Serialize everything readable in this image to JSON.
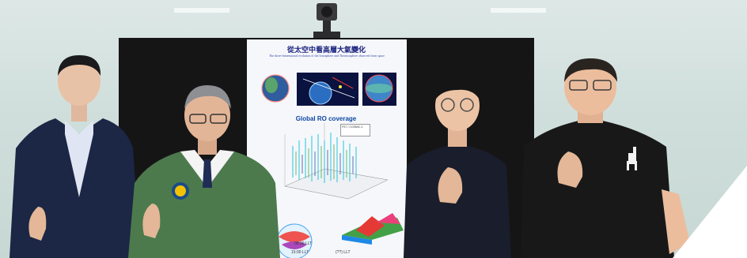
{
  "poster": {
    "title": "從太空中看高層大氣變化",
    "subtitle": "The three-dimensional evolution of the Ionosphere and Thermosphere observed from space",
    "ro_title": "Global RO coverage",
    "legend_text": "FS7 / COSMIC-2",
    "lt_label_1": "09:00 LLT",
    "lt_label_2": "15:00 LLT",
    "lt_label_3": "(??) LLT"
  },
  "colors": {
    "wall": "#d5e3e0",
    "screen": "#151516",
    "poster": "#f6f7fb",
    "jacket_green": "#4c7a4d",
    "suit_navy": "#1c2645",
    "shirt_black": "#181818"
  }
}
